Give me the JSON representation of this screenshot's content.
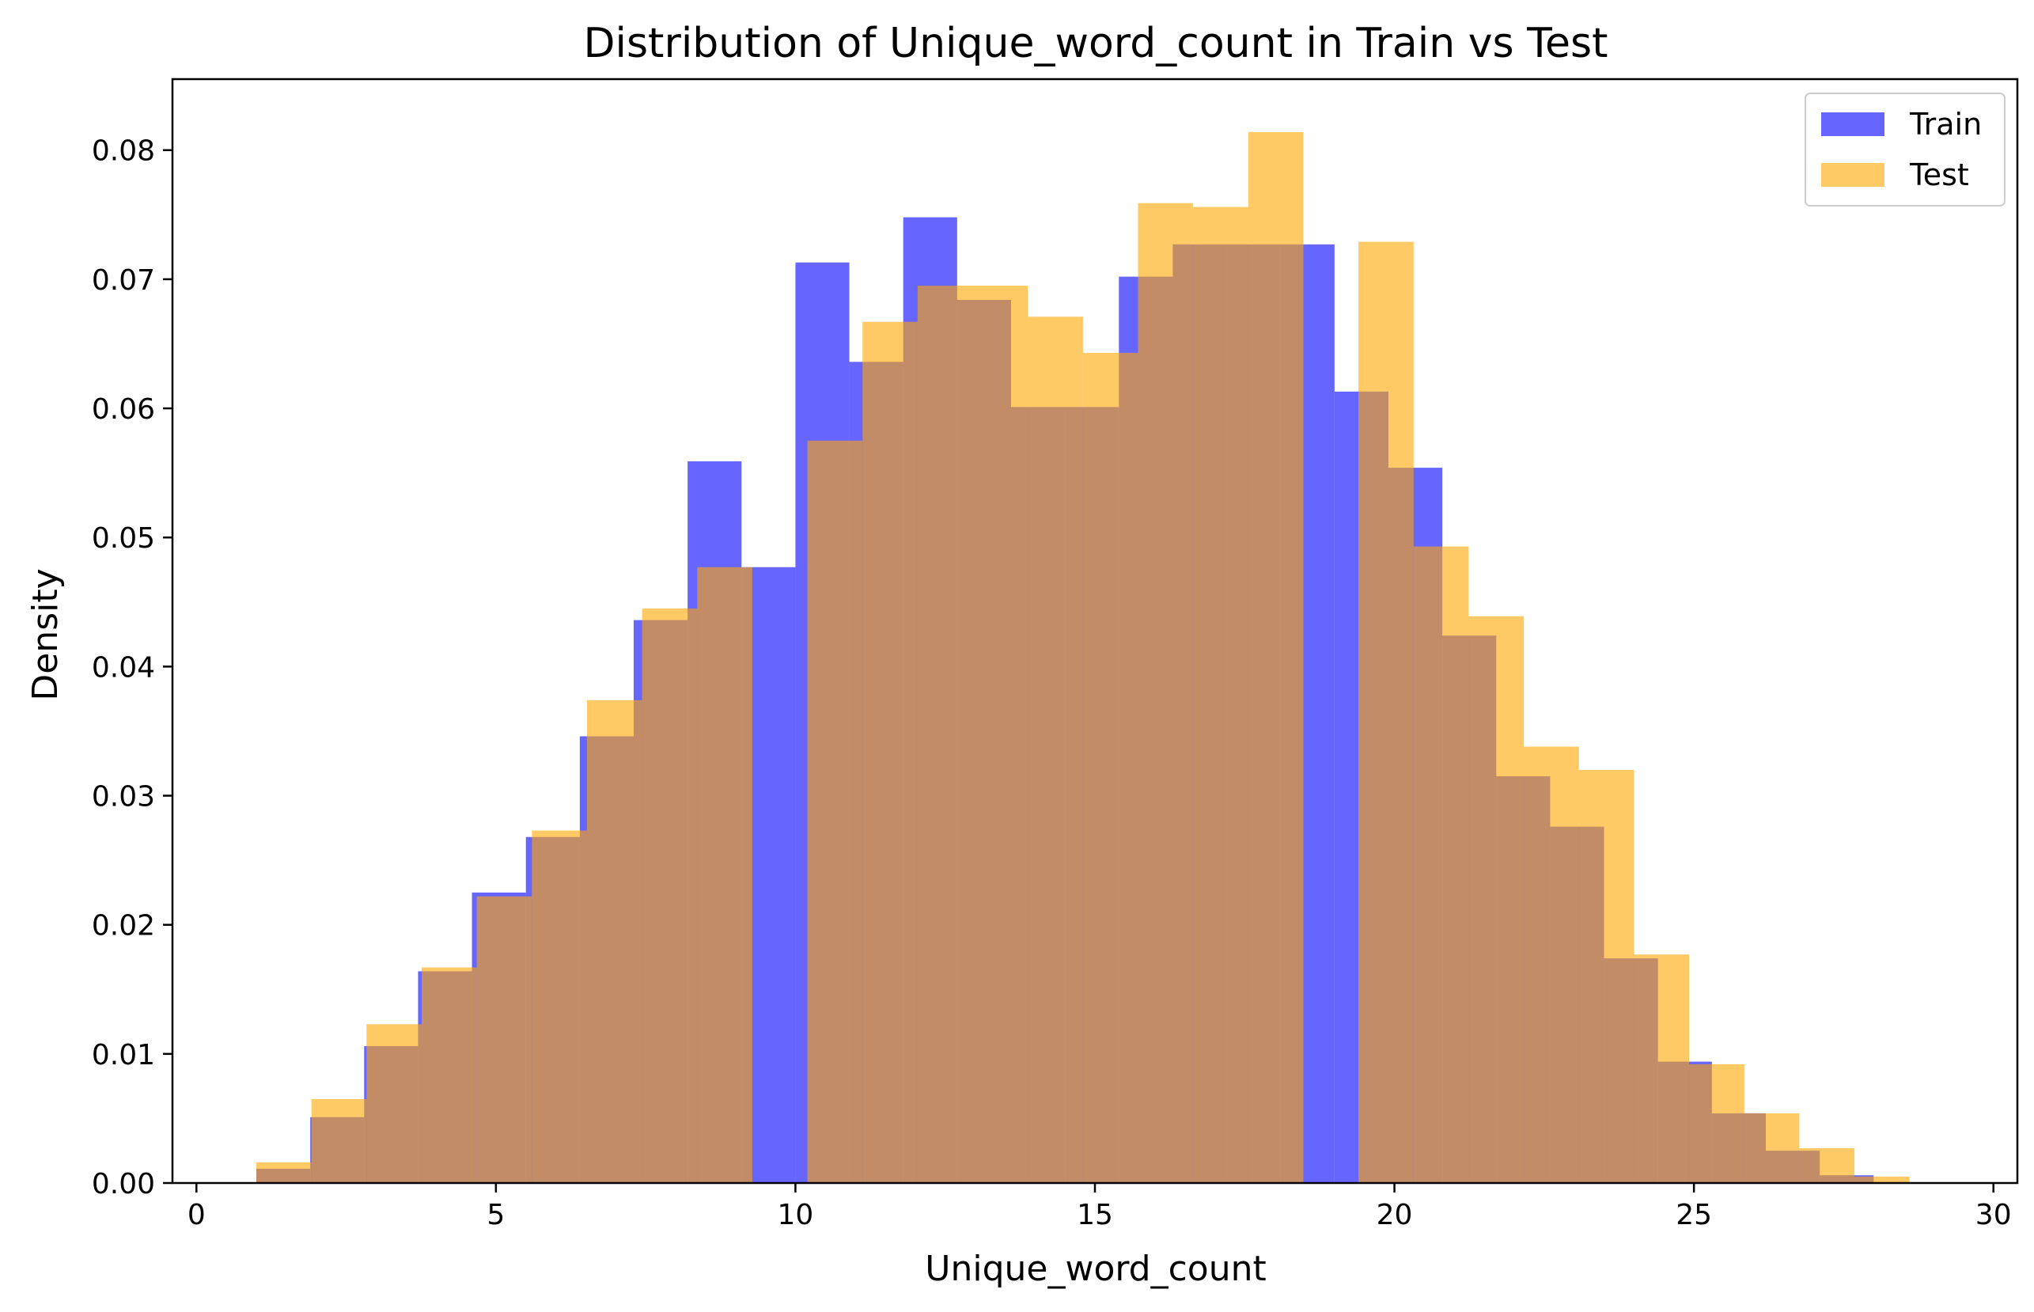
{
  "chart_data": {
    "type": "histogram",
    "title": "Distribution of Unique_word_count in Train vs Test",
    "xlabel": "Unique_word_count",
    "ylabel": "Density",
    "xlim": [
      -0.4,
      30.4
    ],
    "ylim": [
      0,
      0.0855
    ],
    "xticks": [
      0,
      5,
      10,
      15,
      20,
      25,
      30
    ],
    "xtick_labels": [
      "0",
      "5",
      "10",
      "15",
      "20",
      "25",
      "30"
    ],
    "yticks": [
      0,
      0.01,
      0.02,
      0.03,
      0.04,
      0.05,
      0.06,
      0.07,
      0.08
    ],
    "ytick_labels": [
      "0.00",
      "0.01",
      "0.02",
      "0.03",
      "0.04",
      "0.05",
      "0.06",
      "0.07",
      "0.08"
    ],
    "legend_position": "top-right",
    "grid": false,
    "series": [
      {
        "name": "Train",
        "color": "#0000ff",
        "opacity": 0.6,
        "bin_edges": [
          1.0,
          1.9,
          2.8,
          3.7,
          4.6,
          5.5,
          6.4,
          7.3,
          8.2,
          9.1,
          10.0,
          10.9,
          11.8,
          12.7,
          13.6,
          14.5,
          15.4,
          16.3,
          17.2,
          18.1,
          19.0,
          19.9,
          20.8,
          21.7,
          22.6,
          23.5,
          24.4,
          25.3,
          26.2,
          27.1,
          28.0
        ],
        "values": [
          0.0011,
          0.0051,
          0.0106,
          0.0164,
          0.0225,
          0.0268,
          0.0346,
          0.0436,
          0.0559,
          0.0477,
          0.0713,
          0.0636,
          0.0748,
          0.0684,
          0.0601,
          0.0601,
          0.0702,
          0.0727,
          0.0727,
          0.0727,
          0.0613,
          0.0554,
          0.0424,
          0.0315,
          0.0276,
          0.0174,
          0.0094,
          0.0054,
          0.0025,
          0.0006
        ]
      },
      {
        "name": "Test",
        "color": "#ffa500",
        "opacity": 0.6,
        "bin_edges": [
          1.0,
          1.92,
          2.84,
          3.76,
          4.68,
          5.6,
          6.52,
          7.44,
          8.36,
          9.28,
          10.2,
          11.12,
          12.04,
          12.96,
          13.88,
          14.8,
          15.72,
          16.64,
          17.56,
          18.48,
          19.4,
          20.32,
          21.24,
          22.16,
          23.08,
          24.0,
          24.92,
          25.84,
          26.76,
          27.68,
          28.6
        ],
        "values": [
          0.0016,
          0.0065,
          0.0123,
          0.0167,
          0.0222,
          0.0273,
          0.0374,
          0.0445,
          0.0477,
          0.0,
          0.0575,
          0.0667,
          0.0695,
          0.0695,
          0.0671,
          0.0643,
          0.0759,
          0.0756,
          0.0814,
          0.0,
          0.0729,
          0.0493,
          0.0439,
          0.0338,
          0.032,
          0.0177,
          0.0092,
          0.0054,
          0.0027,
          0.0005
        ]
      }
    ]
  }
}
